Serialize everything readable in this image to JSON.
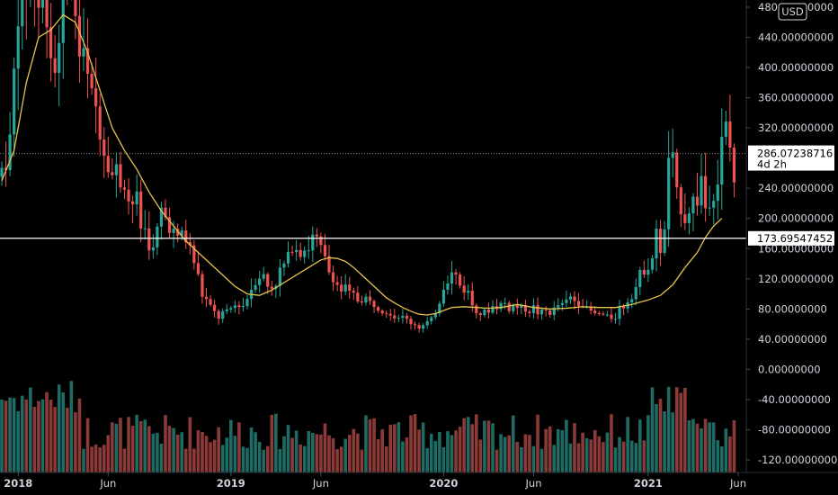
{
  "chart_data": {
    "type": "candlestick",
    "currency": "USD",
    "y_ticks": [
      "480.00000000",
      "440.00000000",
      "400.00000000",
      "360.00000000",
      "320.00000000",
      "240.00000000",
      "200.00000000",
      "160.00000000",
      "120.00000000",
      "80.00000000",
      "40.00000000",
      "0.00000000",
      "-40.00000000",
      "-80.00000000",
      "-120.00000000"
    ],
    "y_tick_values": [
      480,
      440,
      400,
      360,
      320,
      240,
      200,
      160,
      120,
      80,
      40,
      0,
      -40,
      -80,
      -120
    ],
    "ylim": [
      -135,
      490
    ],
    "x_ticks": [
      "2018",
      "Jun",
      "2019",
      "Jun",
      "2020",
      "Jun",
      "2021",
      "Jun"
    ],
    "x_tick_bold": [
      true,
      false,
      true,
      false,
      true,
      false,
      true,
      false
    ],
    "x_tick_weeks": [
      4,
      26,
      56,
      78,
      108,
      130,
      158,
      180
    ],
    "weeks_total": 184,
    "last_price": {
      "value": 286.07238716,
      "label": "286.07238716",
      "countdown": "4d 2h"
    },
    "horizontal_line": {
      "value": 173.69547452,
      "label": "173.69547452"
    },
    "colors": {
      "up": "#26a69a",
      "down": "#ef5350",
      "ma": "#e6c34f",
      "hline": "#ffffff",
      "volume_up": "#1d6b63",
      "volume_down": "#8c3a38",
      "text": "#d1d4dc",
      "background": "#000000"
    },
    "price_path": [
      [
        0,
        255
      ],
      [
        2,
        300
      ],
      [
        4,
        470
      ],
      [
        7,
        560
      ],
      [
        10,
        490
      ],
      [
        13,
        420
      ],
      [
        16,
        540
      ],
      [
        18,
        480
      ],
      [
        21,
        380
      ],
      [
        24,
        320
      ],
      [
        26,
        270
      ],
      [
        29,
        255
      ],
      [
        31,
        235
      ],
      [
        33,
        225
      ],
      [
        35,
        175
      ],
      [
        37,
        155
      ],
      [
        39,
        200
      ],
      [
        41,
        190
      ],
      [
        43,
        170
      ],
      [
        45,
        175
      ],
      [
        47,
        145
      ],
      [
        49,
        100
      ],
      [
        51,
        80
      ],
      [
        53,
        70
      ],
      [
        55,
        75
      ],
      [
        57,
        80
      ],
      [
        59,
        90
      ],
      [
        61,
        110
      ],
      [
        63,
        125
      ],
      [
        66,
        110
      ],
      [
        69,
        135
      ],
      [
        71,
        165
      ],
      [
        73,
        160
      ],
      [
        75,
        165
      ],
      [
        77,
        170
      ],
      [
        79,
        145
      ],
      [
        81,
        120
      ],
      [
        83,
        110
      ],
      [
        85,
        100
      ],
      [
        87,
        95
      ],
      [
        89,
        90
      ],
      [
        91,
        85
      ],
      [
        93,
        80
      ],
      [
        95,
        75
      ],
      [
        97,
        70
      ],
      [
        99,
        65
      ],
      [
        101,
        60
      ],
      [
        103,
        55
      ],
      [
        105,
        65
      ],
      [
        107,
        90
      ],
      [
        108,
        110
      ],
      [
        110,
        125
      ],
      [
        112,
        115
      ],
      [
        114,
        100
      ],
      [
        116,
        80
      ],
      [
        118,
        75
      ],
      [
        120,
        80
      ],
      [
        122,
        85
      ],
      [
        124,
        80
      ],
      [
        126,
        85
      ],
      [
        128,
        80
      ],
      [
        130,
        80
      ],
      [
        132,
        75
      ],
      [
        134,
        75
      ],
      [
        136,
        80
      ],
      [
        138,
        90
      ],
      [
        140,
        95
      ],
      [
        142,
        85
      ],
      [
        144,
        75
      ],
      [
        146,
        70
      ],
      [
        148,
        70
      ],
      [
        150,
        72
      ],
      [
        152,
        85
      ],
      [
        154,
        100
      ],
      [
        156,
        125
      ],
      [
        158,
        140
      ],
      [
        160,
        175
      ],
      [
        161,
        160
      ],
      [
        162,
        180
      ],
      [
        163,
        300
      ],
      [
        164,
        270
      ],
      [
        165,
        230
      ],
      [
        167,
        205
      ],
      [
        169,
        220
      ],
      [
        171,
        240
      ],
      [
        173,
        220
      ],
      [
        174,
        230
      ],
      [
        175,
        260
      ],
      [
        176,
        290
      ],
      [
        177,
        310
      ],
      [
        178,
        280
      ],
      [
        179,
        255
      ]
    ],
    "ma_path": [
      [
        0,
        250
      ],
      [
        3,
        290
      ],
      [
        6,
        380
      ],
      [
        9,
        440
      ],
      [
        12,
        450
      ],
      [
        15,
        470
      ],
      [
        18,
        460
      ],
      [
        21,
        420
      ],
      [
        24,
        370
      ],
      [
        27,
        320
      ],
      [
        30,
        290
      ],
      [
        33,
        265
      ],
      [
        36,
        235
      ],
      [
        39,
        210
      ],
      [
        42,
        190
      ],
      [
        45,
        170
      ],
      [
        48,
        155
      ],
      [
        51,
        140
      ],
      [
        54,
        125
      ],
      [
        57,
        110
      ],
      [
        60,
        100
      ],
      [
        63,
        98
      ],
      [
        66,
        105
      ],
      [
        69,
        115
      ],
      [
        72,
        125
      ],
      [
        75,
        135
      ],
      [
        78,
        145
      ],
      [
        80,
        148
      ],
      [
        82,
        147
      ],
      [
        84,
        143
      ],
      [
        86,
        135
      ],
      [
        88,
        125
      ],
      [
        90,
        115
      ],
      [
        92,
        105
      ],
      [
        94,
        95
      ],
      [
        96,
        88
      ],
      [
        98,
        82
      ],
      [
        100,
        77
      ],
      [
        102,
        73
      ],
      [
        104,
        72
      ],
      [
        106,
        74
      ],
      [
        108,
        78
      ],
      [
        110,
        82
      ],
      [
        113,
        83
      ],
      [
        116,
        82
      ],
      [
        119,
        81
      ],
      [
        122,
        82
      ],
      [
        126,
        86
      ],
      [
        130,
        82
      ],
      [
        134,
        80
      ],
      [
        138,
        81
      ],
      [
        142,
        83
      ],
      [
        146,
        82
      ],
      [
        150,
        82
      ],
      [
        154,
        86
      ],
      [
        158,
        92
      ],
      [
        161,
        98
      ],
      [
        164,
        112
      ],
      [
        167,
        135
      ],
      [
        170,
        155
      ],
      [
        172,
        175
      ],
      [
        174,
        190
      ],
      [
        176,
        200
      ]
    ]
  }
}
